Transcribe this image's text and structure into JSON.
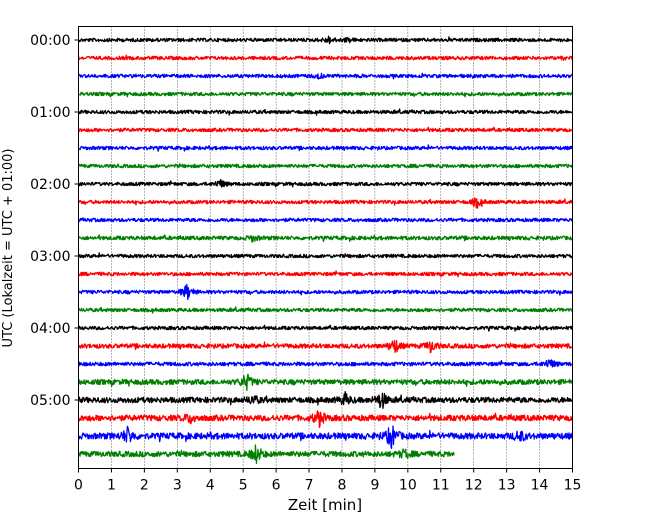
{
  "chart_data": {
    "type": "line",
    "title": "",
    "xlabel": "Zeit  [min]",
    "ylabel": "UTC (Lokalzeit = UTC + 01:00)",
    "xlim": [
      0,
      15
    ],
    "x_ticks": [
      "0",
      "1",
      "2",
      "3",
      "4",
      "5",
      "6",
      "7",
      "8",
      "9",
      "10",
      "11",
      "12",
      "13",
      "14",
      "15"
    ],
    "y_tick_labels": [
      "00:00",
      "01:00",
      "02:00",
      "03:00",
      "04:00",
      "05:00"
    ],
    "grid": "vertical-dotted",
    "minutes_per_trace": 15,
    "colors": [
      "#000000",
      "#ff0000",
      "#0000ff",
      "#007f00"
    ],
    "traces": [
      {
        "start": "00:00",
        "end_min": 15,
        "noise": 1.0,
        "events": [
          [
            7.6,
            3
          ],
          [
            8.2,
            2
          ]
        ]
      },
      {
        "start": "00:15",
        "end_min": 15,
        "noise": 1.0,
        "events": []
      },
      {
        "start": "00:30",
        "end_min": 15,
        "noise": 1.0,
        "events": [
          [
            7.3,
            2
          ]
        ]
      },
      {
        "start": "00:45",
        "end_min": 15,
        "noise": 1.0,
        "events": []
      },
      {
        "start": "01:00",
        "end_min": 15,
        "noise": 1.0,
        "events": []
      },
      {
        "start": "01:15",
        "end_min": 15,
        "noise": 1.0,
        "events": []
      },
      {
        "start": "01:30",
        "end_min": 15,
        "noise": 1.0,
        "events": []
      },
      {
        "start": "01:45",
        "end_min": 15,
        "noise": 1.0,
        "events": []
      },
      {
        "start": "02:00",
        "end_min": 15,
        "noise": 1.0,
        "events": [
          [
            4.3,
            4
          ]
        ]
      },
      {
        "start": "02:15",
        "end_min": 15,
        "noise": 1.0,
        "events": [
          [
            12.1,
            5
          ]
        ]
      },
      {
        "start": "02:30",
        "end_min": 15,
        "noise": 1.0,
        "events": []
      },
      {
        "start": "02:45",
        "end_min": 15,
        "noise": 1.1,
        "events": [
          [
            5.3,
            3
          ]
        ]
      },
      {
        "start": "03:00",
        "end_min": 15,
        "noise": 1.0,
        "events": []
      },
      {
        "start": "03:15",
        "end_min": 15,
        "noise": 1.0,
        "events": []
      },
      {
        "start": "03:30",
        "end_min": 15,
        "noise": 1.0,
        "events": [
          [
            3.3,
            8
          ]
        ]
      },
      {
        "start": "03:45",
        "end_min": 15,
        "noise": 1.0,
        "events": []
      },
      {
        "start": "04:00",
        "end_min": 15,
        "noise": 1.0,
        "events": []
      },
      {
        "start": "04:15",
        "end_min": 15,
        "noise": 1.3,
        "events": [
          [
            9.6,
            7
          ],
          [
            10.7,
            6
          ]
        ]
      },
      {
        "start": "04:30",
        "end_min": 15,
        "noise": 1.1,
        "events": [
          [
            14.3,
            5
          ]
        ]
      },
      {
        "start": "04:45",
        "end_min": 15,
        "noise": 1.5,
        "events": [
          [
            5.1,
            8
          ]
        ]
      },
      {
        "start": "05:00",
        "end_min": 15,
        "noise": 1.6,
        "events": [
          [
            8.1,
            6
          ],
          [
            9.2,
            9
          ],
          [
            5.3,
            4
          ]
        ]
      },
      {
        "start": "05:15",
        "end_min": 15,
        "noise": 1.7,
        "events": [
          [
            7.3,
            8
          ],
          [
            3.4,
            4
          ]
        ]
      },
      {
        "start": "05:30",
        "end_min": 15,
        "noise": 1.8,
        "events": [
          [
            1.5,
            8
          ],
          [
            9.5,
            12
          ],
          [
            13.4,
            5
          ]
        ]
      },
      {
        "start": "05:45",
        "end_min": 11.4,
        "noise": 1.6,
        "events": [
          [
            5.4,
            9
          ],
          [
            9.9,
            4
          ]
        ]
      }
    ]
  }
}
